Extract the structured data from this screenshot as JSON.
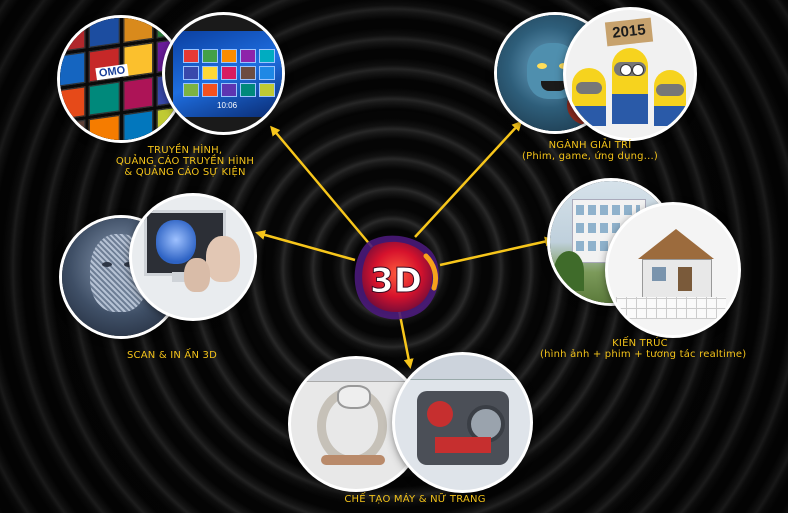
{
  "center": {
    "text": "3D"
  },
  "items": [
    {
      "label_lines": [
        "TRUYỀN HÌNH,",
        "QUẢNG CÁO TRUYỀN HÌNH",
        "& QUẢNG CÁO SỰ KIỆN"
      ]
    },
    {
      "label_lines": [
        "NGÀNH GIẢI TRÍ",
        "(Phim, game, ứng dụng...)"
      ],
      "badge": "2015"
    },
    {
      "label_lines": [
        "SCAN & IN ẤN 3D"
      ]
    },
    {
      "label_lines": [
        "KIẾN TRÚC",
        "(hình ảnh + phim + tương tác realtime)"
      ]
    },
    {
      "label_lines": [
        "CHẾ TẠO MÁY & NỮ TRANG"
      ]
    }
  ],
  "screen_text": {
    "tv_logo": "OMO",
    "clock": "10:06"
  },
  "colors": {
    "accent": "#f2c21a",
    "arrow": "#f7c61b",
    "center_red": "#d6122c",
    "center_purple": "#4a1a7a"
  }
}
